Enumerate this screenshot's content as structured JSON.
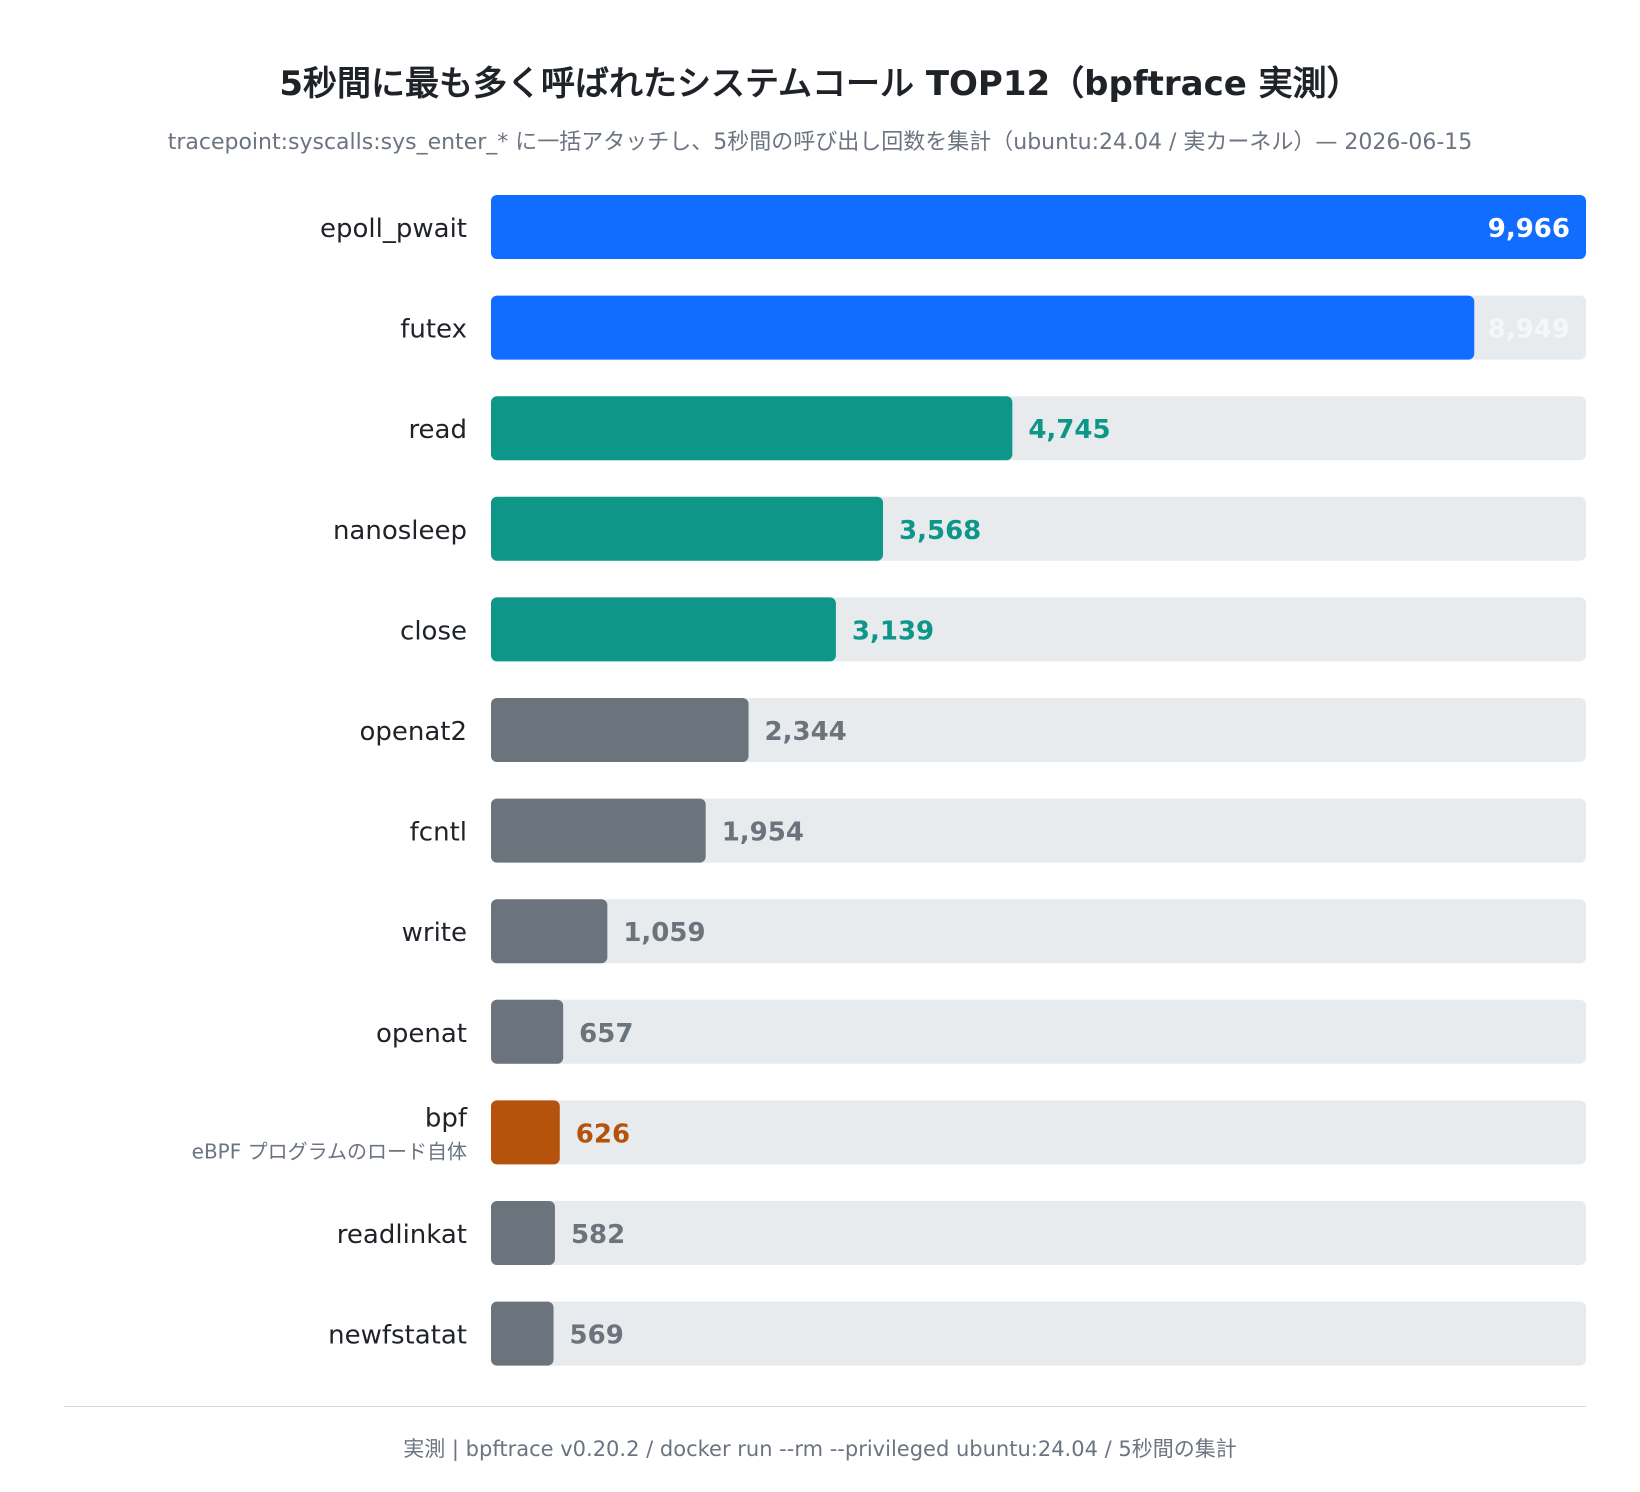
{
  "chart_data": {
    "type": "bar",
    "orientation": "horizontal",
    "title": "5秒間に最も多く呼ばれたシステムコール TOP12（bpftrace 実測）",
    "subtitle": "tracepoint:syscalls:sys_enter_* に一括アタッチし、5秒間の呼び出し回数を集計（ubuntu:24.04 / 実カーネル）— 2026-06-15",
    "categories": [
      "epoll_pwait",
      "futex",
      "read",
      "nanosleep",
      "close",
      "openat2",
      "fcntl",
      "write",
      "openat",
      "bpf",
      "readlinkat",
      "newfstatat"
    ],
    "values": [
      9966,
      8949,
      4745,
      3568,
      3139,
      2344,
      1954,
      1059,
      657,
      626,
      582,
      569
    ],
    "value_labels": [
      "9,966",
      "8,949",
      "4,745",
      "3,568",
      "3,139",
      "2,344",
      "1,954",
      "1,059",
      "657",
      "626",
      "582",
      "569"
    ],
    "annotations": {
      "bpf": "eBPF プログラムのロード自体"
    },
    "groups": [
      "top",
      "top",
      "high",
      "high",
      "high",
      "other",
      "other",
      "other",
      "other",
      "bpf",
      "other",
      "other"
    ],
    "xlim": [
      0,
      9966
    ],
    "grid": false,
    "legend": "none",
    "colors": {
      "top": "#116dff",
      "high": "#0e9688",
      "other": "#6b737d",
      "bpf": "#b5520c",
      "track": "#e8ebee",
      "label_on_bar": "#ffffff",
      "label_on_track": "#f4f6f8"
    }
  },
  "footer": "実測 | bpftrace v0.20.2 / docker run --rm --privileged ubuntu:24.04 / 5秒間の集計"
}
